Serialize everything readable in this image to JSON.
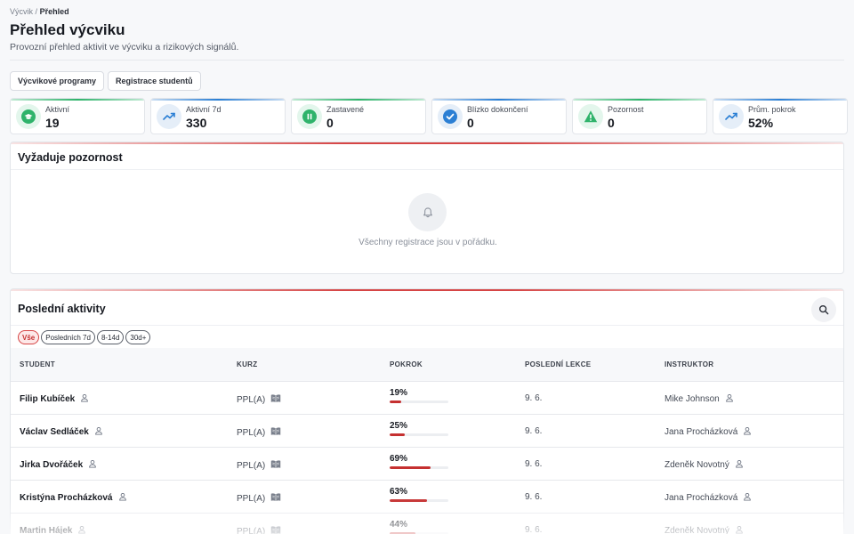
{
  "breadcrumb": {
    "parent": "Výcvik",
    "separator": "/",
    "current": "Přehled"
  },
  "header": {
    "title": "Přehled výcviku",
    "subtitle": "Provozní přehled aktivit ve výcviku a rizikových signálů."
  },
  "tabs": [
    "Výcvikové programy",
    "Registrace studentů"
  ],
  "stats": [
    {
      "label": "Aktivní",
      "value": "19",
      "icon": "graduation-cap-icon",
      "color": "#2fb36b",
      "bg": "#e3f6ec"
    },
    {
      "label": "Aktivní 7d",
      "value": "330",
      "icon": "trending-up-icon",
      "color": "#2b7fd4",
      "bg": "#e5eef8"
    },
    {
      "label": "Zastavené",
      "value": "0",
      "icon": "pause-icon",
      "color": "#2fb36b",
      "bg": "#e3f6ec"
    },
    {
      "label": "Blízko dokončení",
      "value": "0",
      "icon": "check-circle-icon",
      "color": "#2b7fd4",
      "bg": "#e5eef8"
    },
    {
      "label": "Pozornost",
      "value": "0",
      "icon": "warning-icon",
      "color": "#2fb36b",
      "bg": "#e3f6ec"
    },
    {
      "label": "Prům. pokrok",
      "value": "52%",
      "icon": "trending-up-icon",
      "color": "#2b7fd4",
      "bg": "#e5eef8"
    }
  ],
  "attention": {
    "title": "Vyžaduje pozornost",
    "empty_message": "Všechny registrace jsou v pořádku."
  },
  "activity": {
    "title": "Poslední aktivity",
    "filters": [
      "Vše",
      "Posledních 7d",
      "8-14d",
      "30d+"
    ],
    "active_filter": "Vše",
    "columns": [
      "STUDENT",
      "KURZ",
      "POKROK",
      "POSLEDNÍ LEKCE",
      "INSTRUKTOR"
    ],
    "rows": [
      {
        "student": "Filip Kubíček",
        "course": "PPL(A)",
        "progress_label": "19%",
        "progress": 19,
        "last_lesson": "9. 6.",
        "instructor": "Mike Johnson"
      },
      {
        "student": "Václav Sedláček",
        "course": "PPL(A)",
        "progress_label": "25%",
        "progress": 25,
        "last_lesson": "9. 6.",
        "instructor": "Jana Procházková"
      },
      {
        "student": "Jirka Dvořáček",
        "course": "PPL(A)",
        "progress_label": "69%",
        "progress": 69,
        "last_lesson": "9. 6.",
        "instructor": "Zdeněk Novotný"
      },
      {
        "student": "Kristýna Procházková",
        "course": "PPL(A)",
        "progress_label": "63%",
        "progress": 63,
        "last_lesson": "9. 6.",
        "instructor": "Jana Procházková"
      },
      {
        "student": "Martin Hájek",
        "course": "PPL(A)",
        "progress_label": "44%",
        "progress": 44,
        "last_lesson": "9. 6.",
        "instructor": "Zdeněk Novotný"
      }
    ]
  },
  "colors": {
    "accent_red": "#d64545",
    "progress_red": "#c53030"
  }
}
